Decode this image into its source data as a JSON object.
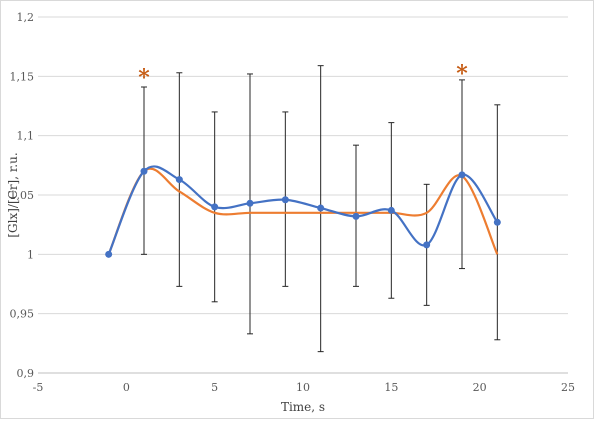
{
  "chart_data": {
    "type": "line",
    "title": "",
    "xlabel": "Time, s",
    "ylabel": "[Glx]/[Cr], r.u.",
    "xlim": [
      -5,
      25
    ],
    "ylim": [
      0.9,
      1.2
    ],
    "x_ticks": [
      -5,
      0,
      5,
      10,
      15,
      20,
      25
    ],
    "x_tick_labels": [
      "-5",
      "0",
      "5",
      "10",
      "15",
      "20",
      "25"
    ],
    "y_ticks": [
      0.9,
      0.95,
      1.0,
      1.05,
      1.1,
      1.15,
      1.2
    ],
    "y_tick_labels": [
      "0,9",
      "0,95",
      "1",
      "1,05",
      "1,1",
      "1,15",
      "1,2"
    ],
    "grid": "horizontal",
    "legend": "none",
    "series": [
      {
        "color": "#4472c4",
        "markers": true,
        "x": [
          -1,
          1,
          3,
          5,
          7,
          9,
          11,
          13,
          15,
          17,
          19,
          21
        ],
        "y": [
          1.0,
          1.07,
          1.063,
          1.04,
          1.043,
          1.046,
          1.039,
          1.032,
          1.037,
          1.008,
          1.067,
          1.027
        ],
        "error_low": [
          1.0,
          1.0,
          0.973,
          0.96,
          0.933,
          0.973,
          0.918,
          0.973,
          0.963,
          0.957,
          0.988,
          0.928
        ],
        "error_high": [
          1.0,
          1.141,
          1.153,
          1.12,
          1.152,
          1.12,
          1.159,
          1.092,
          1.111,
          1.059,
          1.147,
          1.126
        ]
      },
      {
        "color": "#ed7d31",
        "markers": false,
        "x": [
          -1,
          1,
          3,
          5,
          7,
          9,
          11,
          13,
          15,
          17,
          19,
          21
        ],
        "y": [
          1.0,
          1.07,
          1.053,
          1.035,
          1.035,
          1.035,
          1.035,
          1.035,
          1.035,
          1.035,
          1.066,
          1.0
        ]
      }
    ],
    "annotations": [
      {
        "text": "*",
        "x": 1,
        "y": 1.153,
        "color": "#c55a11"
      },
      {
        "text": "*",
        "x": 19,
        "y": 1.156,
        "color": "#c55a11"
      }
    ]
  }
}
